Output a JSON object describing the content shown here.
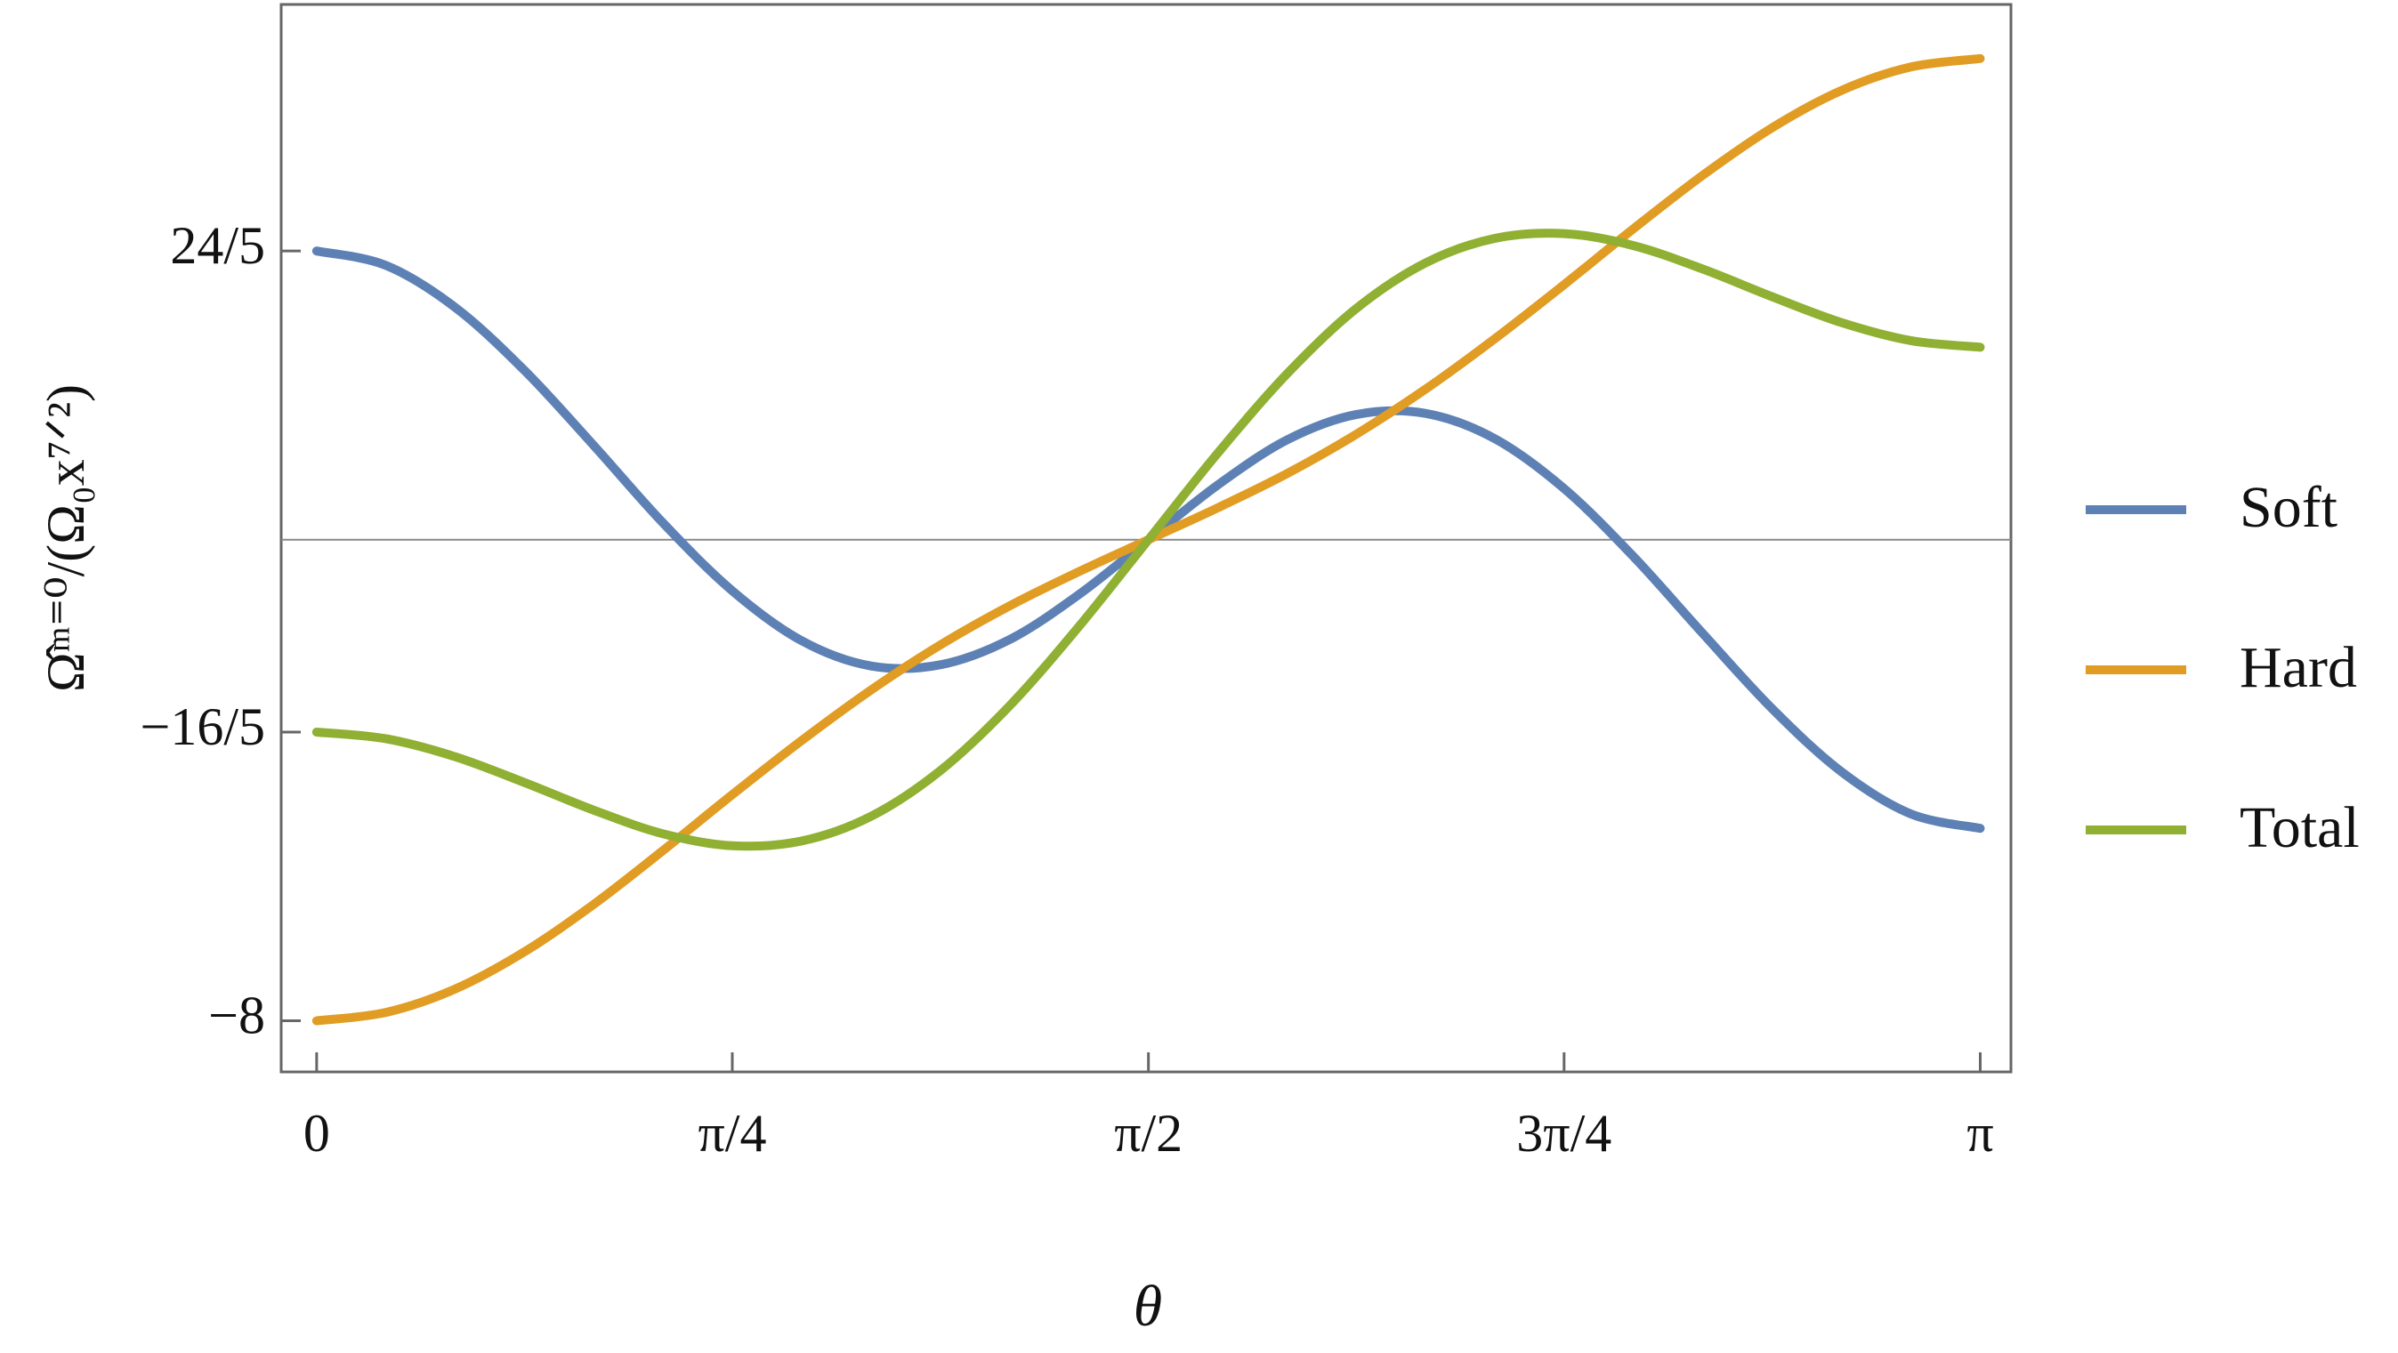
{
  "chart_data": {
    "type": "line",
    "x_label": "θ",
    "y_label": "Ω̂ᵐ⁼⁰/(Ω₀x⁷ᐟ²)",
    "x": [
      0,
      0.131,
      0.262,
      0.393,
      0.524,
      0.654,
      0.785,
      0.916,
      1.047,
      1.178,
      1.309,
      1.44,
      1.571,
      1.702,
      1.833,
      1.963,
      2.094,
      2.225,
      2.356,
      2.487,
      2.618,
      2.749,
      2.88,
      3.011,
      3.142
    ],
    "series": [
      {
        "name": "Soft",
        "color": "#5e81b5",
        "values": [
          4.8,
          4.56,
          3.86,
          2.81,
          1.56,
          0.28,
          -0.85,
          -1.68,
          -2.1,
          -2.08,
          -1.66,
          -0.91,
          0,
          0.91,
          1.66,
          2.08,
          2.1,
          1.68,
          0.85,
          -0.28,
          -1.56,
          -2.81,
          -3.86,
          -4.56,
          -4.8
        ]
      },
      {
        "name": "Hard",
        "color": "#e19c24",
        "values": [
          -8,
          -7.86,
          -7.47,
          -6.85,
          -6.06,
          -5.17,
          -4.24,
          -3.34,
          -2.5,
          -1.75,
          -1.1,
          -0.53,
          0,
          0.53,
          1.1,
          1.75,
          2.5,
          3.34,
          4.24,
          5.17,
          6.06,
          6.85,
          7.47,
          7.86,
          8
        ]
      },
      {
        "name": "Total",
        "color": "#8fb032",
        "values": [
          -3.2,
          -3.31,
          -3.61,
          -4.04,
          -4.5,
          -4.89,
          -5.09,
          -5.01,
          -4.6,
          -3.84,
          -2.76,
          -1.44,
          0,
          1.44,
          2.76,
          3.84,
          4.6,
          5.01,
          5.09,
          4.89,
          4.5,
          4.04,
          3.61,
          3.31,
          3.2
        ]
      }
    ],
    "xlim": [
      -0.067,
      3.2
    ],
    "ylim": [
      -8.85,
      8.9
    ],
    "xticks": [
      0,
      {
        "value": 0.785,
        "label": "π/4"
      },
      {
        "value": 1.571,
        "label": "π/2"
      },
      {
        "value": 2.356,
        "label": "3π/4"
      },
      {
        "value": 3.142,
        "label": "π"
      }
    ],
    "yticks": [
      {
        "value": 4.8,
        "label": "24/5"
      },
      {
        "value": -3.2,
        "label": "−16/5"
      },
      {
        "value": -8,
        "label": "−8"
      }
    ],
    "legend": "right"
  }
}
